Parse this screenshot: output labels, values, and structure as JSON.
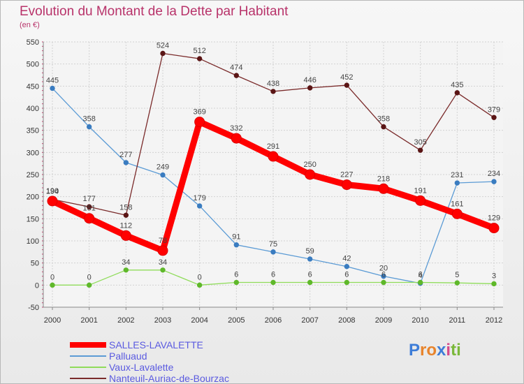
{
  "header": {
    "title": "Evolution du Montant de la Dette par Habitant",
    "subtitle": "(en €)"
  },
  "chart_data": {
    "type": "line",
    "x": [
      "2000",
      "2001",
      "2002",
      "2003",
      "2004",
      "2005",
      "2006",
      "2007",
      "2008",
      "2009",
      "2010",
      "2011",
      "2012"
    ],
    "ylim": [
      -50,
      550
    ],
    "yticks": [
      -50,
      0,
      50,
      100,
      150,
      200,
      250,
      300,
      350,
      400,
      450,
      500,
      550
    ],
    "grid": true,
    "legend_position": "bottom-left",
    "series": [
      {
        "name": "SALLES-LAVALETTE",
        "color": "#ff0000",
        "values": [
          190,
          151,
          112,
          78,
          369,
          332,
          291,
          250,
          227,
          218,
          191,
          161,
          129
        ]
      },
      {
        "name": "Palluaud",
        "color": "#5b9bd5",
        "values": [
          445,
          358,
          277,
          249,
          179,
          91,
          75,
          59,
          42,
          20,
          4,
          231,
          234
        ]
      },
      {
        "name": "Vaux-Lavalette",
        "color": "#8fdc5a",
        "values": [
          0,
          0,
          34,
          34,
          0,
          6,
          6,
          6,
          6,
          6,
          6,
          5,
          3
        ]
      },
      {
        "name": "Nanteuil-Auriac-de-Bourzac",
        "color": "#7a2a2a",
        "values": [
          194,
          177,
          158,
          524,
          512,
          474,
          438,
          446,
          452,
          358,
          305,
          435,
          379
        ]
      }
    ]
  },
  "logo": {
    "letters": [
      "P",
      "r",
      "o",
      "x",
      "i",
      "t",
      "i"
    ],
    "colors": [
      "#3d7dd8",
      "#e8842c",
      "#e8842c",
      "#3d7dd8",
      "#d64a8c",
      "#7ab83a",
      "#7ab83a"
    ]
  }
}
